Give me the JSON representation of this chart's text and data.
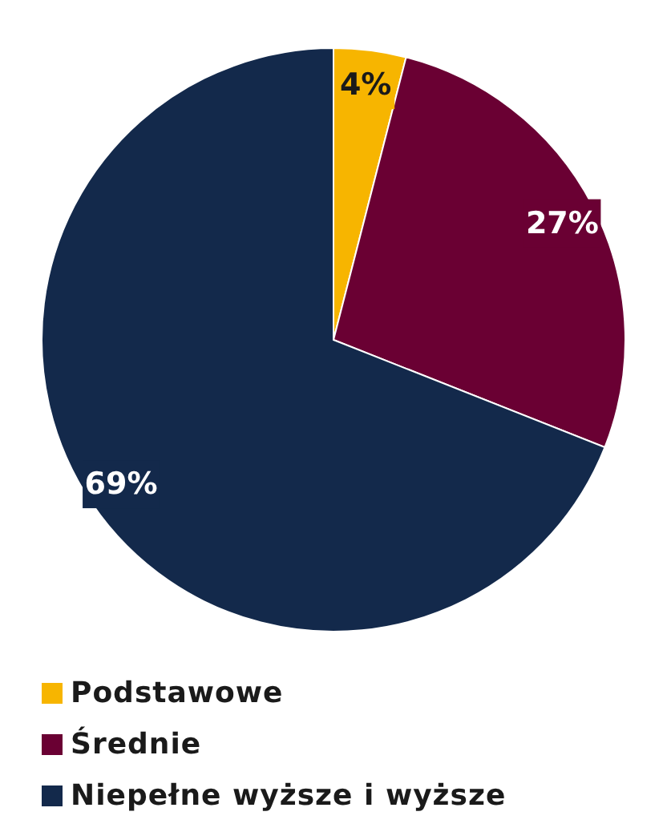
{
  "chart_data": {
    "type": "pie",
    "categories": [
      "Podstawowe",
      "Średnie",
      "Niepełne wyższe i wyższe"
    ],
    "values": [
      4,
      27,
      69
    ],
    "colors": [
      "#f7b500",
      "#6a0033",
      "#13294b"
    ],
    "value_labels": [
      "4%",
      "27%",
      "69%"
    ],
    "legend": "bottom"
  }
}
